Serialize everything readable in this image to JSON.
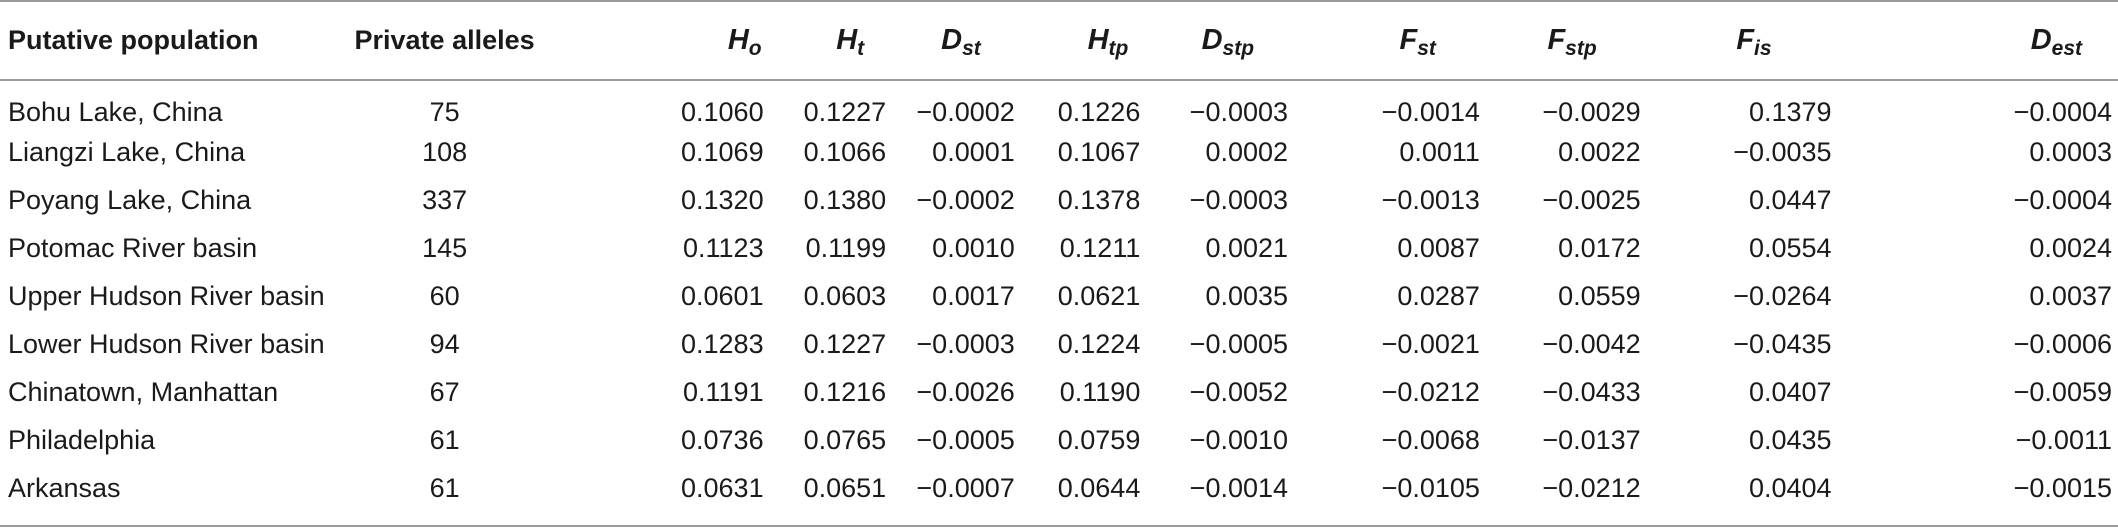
{
  "table": {
    "headers": {
      "population": "Putative population",
      "private_alleles": "Private alleles",
      "ho": {
        "base": "H",
        "sub": "o"
      },
      "ht": {
        "base": "H",
        "sub": "t"
      },
      "dst": {
        "base": "D",
        "sub": "st"
      },
      "htp": {
        "base": "H",
        "sub": "tp"
      },
      "dstp": {
        "base": "D",
        "sub": "stp"
      },
      "fst": {
        "base": "F",
        "sub": "st"
      },
      "fstp": {
        "base": "F",
        "sub": "stp"
      },
      "fis": {
        "base": "F",
        "sub": "is"
      },
      "dest": {
        "base": "D",
        "sub": "est"
      }
    },
    "rows": [
      {
        "population": "Bohu Lake, China",
        "private_alleles": "75",
        "ho": "0.1060",
        "ht": "0.1227",
        "dst": "−0.0002",
        "htp": "0.1226",
        "dstp": "−0.0003",
        "fst": "−0.0014",
        "fstp": "−0.0029",
        "fis": "0.1379",
        "dest": "−0.0004"
      },
      {
        "population": "Liangzi Lake, China",
        "private_alleles": "108",
        "ho": "0.1069",
        "ht": "0.1066",
        "dst": "0.0001",
        "htp": "0.1067",
        "dstp": "0.0002",
        "fst": "0.0011",
        "fstp": "0.0022",
        "fis": "−0.0035",
        "dest": "0.0003"
      },
      {
        "population": "Poyang Lake, China",
        "private_alleles": "337",
        "ho": "0.1320",
        "ht": "0.1380",
        "dst": "−0.0002",
        "htp": "0.1378",
        "dstp": "−0.0003",
        "fst": "−0.0013",
        "fstp": "−0.0025",
        "fis": "0.0447",
        "dest": "−0.0004"
      },
      {
        "population": "Potomac River basin",
        "private_alleles": "145",
        "ho": "0.1123",
        "ht": "0.1199",
        "dst": "0.0010",
        "htp": "0.1211",
        "dstp": "0.0021",
        "fst": "0.0087",
        "fstp": "0.0172",
        "fis": "0.0554",
        "dest": "0.0024"
      },
      {
        "population": "Upper Hudson River basin",
        "private_alleles": "60",
        "ho": "0.0601",
        "ht": "0.0603",
        "dst": "0.0017",
        "htp": "0.0621",
        "dstp": "0.0035",
        "fst": "0.0287",
        "fstp": "0.0559",
        "fis": "−0.0264",
        "dest": "0.0037"
      },
      {
        "population": "Lower Hudson River basin",
        "private_alleles": "94",
        "ho": "0.1283",
        "ht": "0.1227",
        "dst": "−0.0003",
        "htp": "0.1224",
        "dstp": "−0.0005",
        "fst": "−0.0021",
        "fstp": "−0.0042",
        "fis": "−0.0435",
        "dest": "−0.0006"
      },
      {
        "population": "Chinatown, Manhattan",
        "private_alleles": "67",
        "ho": "0.1191",
        "ht": "0.1216",
        "dst": "−0.0026",
        "htp": "0.1190",
        "dstp": "−0.0052",
        "fst": "−0.0212",
        "fstp": "−0.0433",
        "fis": "0.0407",
        "dest": "−0.0059"
      },
      {
        "population": "Philadelphia",
        "private_alleles": "61",
        "ho": "0.0736",
        "ht": "0.0765",
        "dst": "−0.0005",
        "htp": "0.0759",
        "dstp": "−0.0010",
        "fst": "−0.0068",
        "fstp": "−0.0137",
        "fis": "0.0435",
        "dest": "−0.0011"
      },
      {
        "population": "Arkansas",
        "private_alleles": "61",
        "ho": "0.0631",
        "ht": "0.0651",
        "dst": "−0.0007",
        "htp": "0.0644",
        "dstp": "−0.0014",
        "fst": "−0.0105",
        "fstp": "−0.0212",
        "fis": "0.0404",
        "dest": "−0.0015"
      }
    ]
  }
}
